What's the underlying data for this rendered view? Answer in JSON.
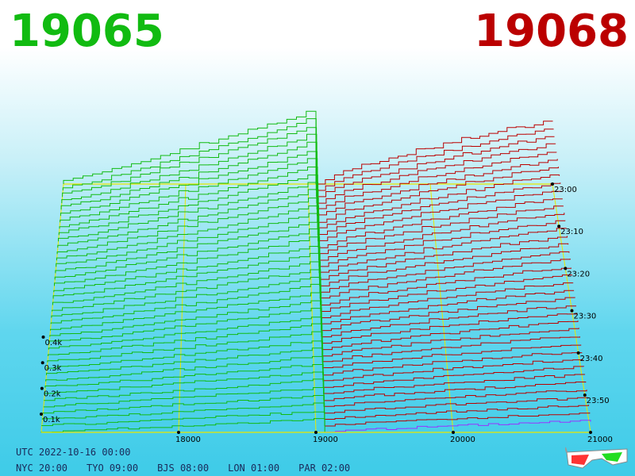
{
  "header": {
    "left_price": "19065",
    "right_price": "19068"
  },
  "colors": {
    "bid": "#11bb11",
    "ask": "#bb0000",
    "frame": "#e8e800",
    "accent_last": "#9933ff"
  },
  "chart_data": {
    "type": "line",
    "subtype": "3d-depth-waterfall",
    "x_axis": {
      "ticks": [
        "18000",
        "19000",
        "20000",
        "21000"
      ],
      "range": [
        17000,
        21000
      ]
    },
    "z_axis": {
      "ticks": [
        "0.1k",
        "0.2k",
        "0.3k",
        "0.4k"
      ],
      "range": [
        0,
        450
      ]
    },
    "time_axis": {
      "ticks": [
        "23:00",
        "23:10",
        "23:20",
        "23:30",
        "23:40",
        "23:50"
      ]
    },
    "series": [
      {
        "side": "bid",
        "from_price": 17000,
        "to_price": 19065,
        "volume_at_far_end": 400
      },
      {
        "side": "ask",
        "from_price": 19068,
        "to_price": 21000,
        "volume_at_far_end": 350
      }
    ],
    "snapshot_count": 40
  },
  "footer": {
    "utc": "UTC 2022-10-16 00:00",
    "zones": [
      "NYC 20:00",
      "TYO 09:00",
      "BJS 08:00",
      "LON 01:00",
      "PAR 02:00"
    ]
  }
}
